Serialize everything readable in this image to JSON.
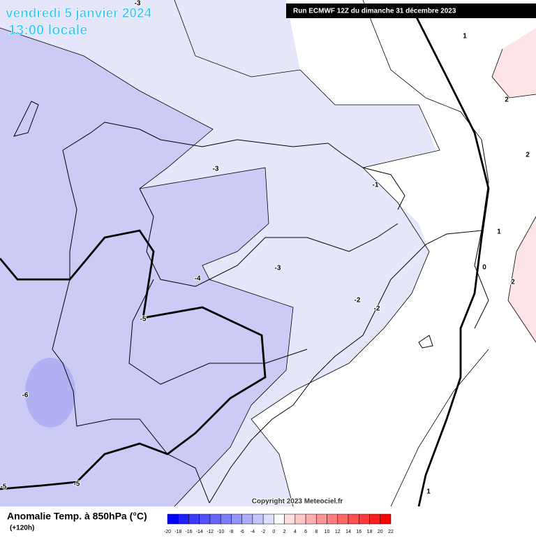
{
  "header": {
    "date": "vendredi 5 janvier 2024",
    "time": "13:00 locale",
    "run": "Run ECMWF 12Z du dimanche 31 décembre 2023"
  },
  "map": {
    "contour_labels": [
      "-3",
      "-3",
      "-1",
      "-3",
      "-4",
      "-2",
      "-2",
      "-5",
      "-6",
      "-5",
      "-5",
      "1",
      "2",
      "2",
      "1",
      "0",
      "2",
      "1"
    ]
  },
  "copyright": "Copyright 2023 Meteociel.fr",
  "legend": {
    "title": "Anomalie Temp. à 850hPa (°C)",
    "lead": "(+120h)",
    "ticks": [
      -20,
      -18,
      -16,
      -14,
      -12,
      -10,
      -8,
      -6,
      -4,
      -2,
      0,
      2,
      4,
      6,
      8,
      10,
      12,
      14,
      16,
      18,
      20,
      22
    ],
    "colors": [
      "#0000ff",
      "#1f1fff",
      "#3a3aff",
      "#5050ff",
      "#6666ff",
      "#7d7dff",
      "#9595ff",
      "#adadff",
      "#c6c6ff",
      "#dedeff",
      "#ffffff",
      "#ffdede",
      "#ffc6c6",
      "#ffadad",
      "#ff9595",
      "#ff7d7d",
      "#ff6666",
      "#ff5050",
      "#ff3a3a",
      "#ff1f1f",
      "#ff0000"
    ]
  }
}
